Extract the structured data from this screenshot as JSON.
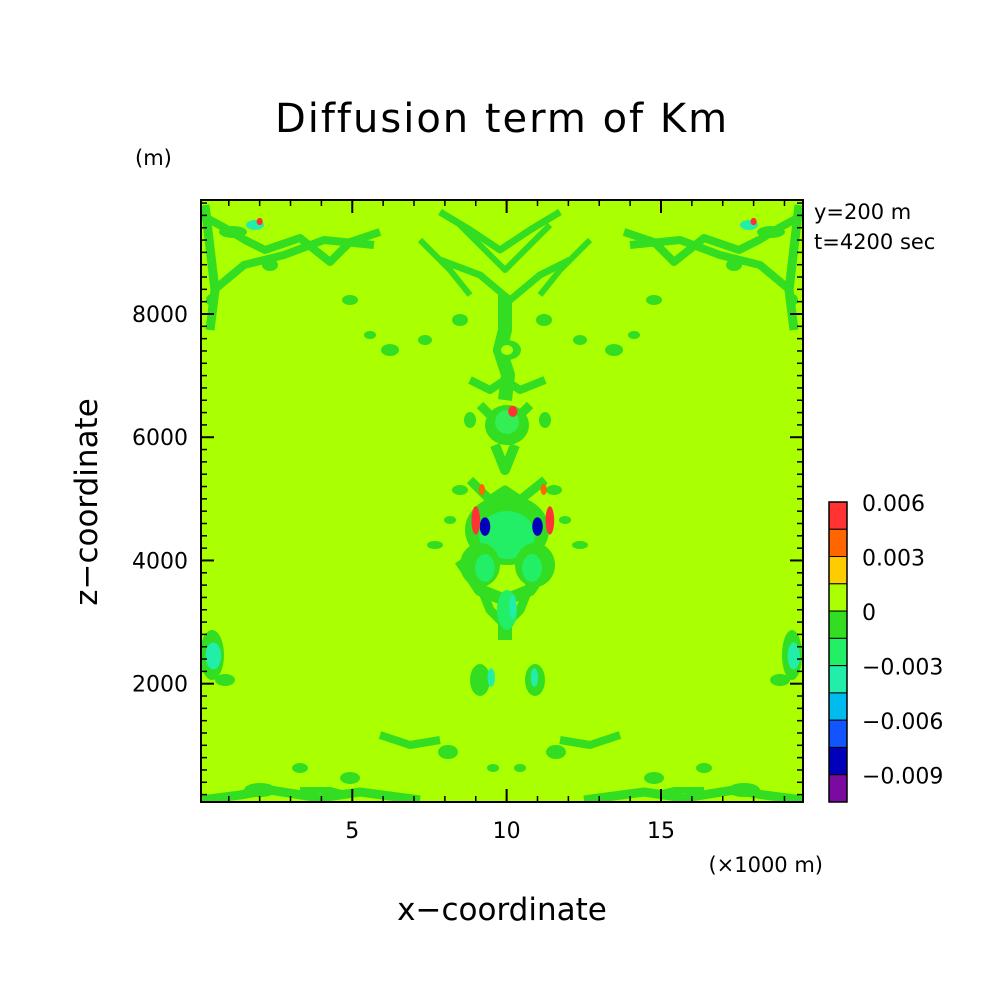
{
  "chart_data": {
    "type": "heatmap",
    "title": "Diffusion term of Km",
    "xlabel": "x−coordinate",
    "ylabel": "z−coordinate",
    "x_unit": "(×1000 m)",
    "y_unit": "(m)",
    "annotations": [
      "y=200 m",
      "t=4200 sec"
    ],
    "xlim": [
      0.1,
      19.6
    ],
    "ylim": [
      80,
      9850
    ],
    "x_ticks": [
      {
        "value": 5,
        "label": "5"
      },
      {
        "value": 10,
        "label": "10"
      },
      {
        "value": 15,
        "label": "15"
      }
    ],
    "y_ticks": [
      {
        "value": 2000,
        "label": "2000"
      },
      {
        "value": 4000,
        "label": "4000"
      },
      {
        "value": 6000,
        "label": "6000"
      },
      {
        "value": 8000,
        "label": "8000"
      }
    ],
    "background_level": "0",
    "colorbar": {
      "levels": [
        {
          "label": "0.006",
          "color": "#ff3333"
        },
        {
          "label": "",
          "color": "#ff6600"
        },
        {
          "label": "0.003",
          "color": "#ffcc00"
        },
        {
          "label": "",
          "color": "#aaff00"
        },
        {
          "label": "0",
          "color": "#33dd22"
        },
        {
          "label": "",
          "color": "#22ee66"
        },
        {
          "label": "−0.003",
          "color": "#22eeaa"
        },
        {
          "label": "",
          "color": "#00bbee"
        },
        {
          "label": "−0.006",
          "color": "#1155ff"
        },
        {
          "label": "",
          "color": "#0000bb"
        },
        {
          "label": "−0.009",
          "color": "#7a0aa0"
        }
      ]
    },
    "features": [
      {
        "x": 10.2,
        "z": 6420,
        "rx": 0.15,
        "rz": 90,
        "color": "#ff3333"
      },
      {
        "x": 9.3,
        "z": 4550,
        "rx": 0.17,
        "rz": 150,
        "color": "#0000bb"
      },
      {
        "x": 11.0,
        "z": 4550,
        "rx": 0.17,
        "rz": 150,
        "color": "#0000bb"
      },
      {
        "x": 9.0,
        "z": 4650,
        "rx": 0.14,
        "rz": 230,
        "color": "#ff3333"
      },
      {
        "x": 11.4,
        "z": 4650,
        "rx": 0.14,
        "rz": 230,
        "color": "#ff3333"
      },
      {
        "x": 9.2,
        "z": 5150,
        "rx": 0.1,
        "rz": 90,
        "color": "#ff6600"
      },
      {
        "x": 11.2,
        "z": 5150,
        "rx": 0.1,
        "rz": 90,
        "color": "#ff6600"
      },
      {
        "x": 10.2,
        "z": 3250,
        "rx": 0.12,
        "rz": 200,
        "color": "#22eeaa"
      },
      {
        "x": 9.5,
        "z": 2100,
        "rx": 0.12,
        "rz": 150,
        "color": "#22eeaa"
      },
      {
        "x": 10.9,
        "z": 2100,
        "rx": 0.12,
        "rz": 150,
        "color": "#22eeaa"
      },
      {
        "x": 0.5,
        "z": 2450,
        "rx": 0.25,
        "rz": 220,
        "color": "#22eeaa"
      },
      {
        "x": 19.3,
        "z": 2450,
        "rx": 0.2,
        "rz": 220,
        "color": "#22eeaa"
      },
      {
        "x": 2.0,
        "z": 9500,
        "rx": 0.1,
        "rz": 60,
        "color": "#ff3333"
      },
      {
        "x": 18.0,
        "z": 9500,
        "rx": 0.1,
        "rz": 60,
        "color": "#ff3333"
      }
    ]
  }
}
